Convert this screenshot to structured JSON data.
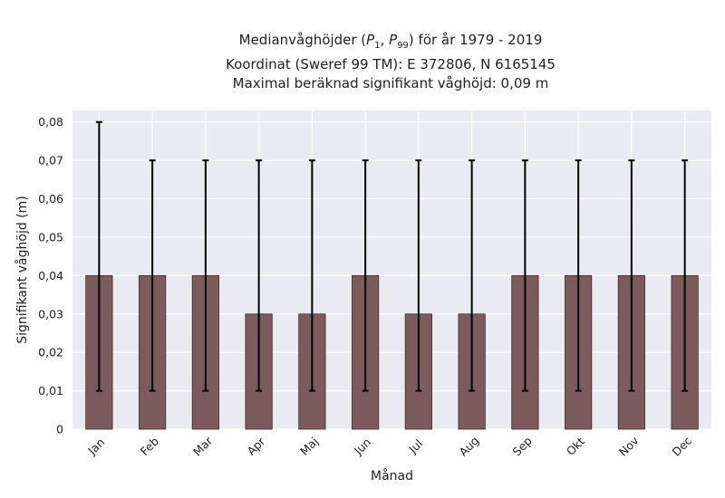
{
  "title_lines": [
    "Medianvåghöjder (P1, P99) för år 1979 - 2019",
    "Koordinat (Sweref 99 TM): E 372806, N 6165145",
    "Maximal beräknad signifikant våghöjd: 0,09 m"
  ],
  "colors": {
    "plot_background": "#eaeaf2",
    "grid": "#ffffff",
    "bar_fill": "#7b5b5b",
    "bar_edge": "#3f2a2a",
    "error_bar": "#000000"
  },
  "chart_data": {
    "type": "bar",
    "title": "Medianvåghöjder (P1, P99) för år 1979 - 2019",
    "xlabel": "Månad",
    "ylabel": "Signifikant våghöjd (m)",
    "categories": [
      "Jan",
      "Feb",
      "Mar",
      "Apr",
      "Maj",
      "Jun",
      "Jul",
      "Aug",
      "Sep",
      "Okt",
      "Nov",
      "Dec"
    ],
    "values": [
      0.04,
      0.04,
      0.04,
      0.03,
      0.03,
      0.04,
      0.03,
      0.03,
      0.04,
      0.04,
      0.04,
      0.04
    ],
    "error_low": [
      0.01,
      0.01,
      0.01,
      0.01,
      0.01,
      0.01,
      0.01,
      0.01,
      0.01,
      0.01,
      0.01,
      0.01
    ],
    "error_high": [
      0.08,
      0.07,
      0.07,
      0.07,
      0.07,
      0.07,
      0.07,
      0.07,
      0.07,
      0.07,
      0.07,
      0.07
    ],
    "ylim": [
      0,
      0.083
    ],
    "yticks": [
      0,
      0.01,
      0.02,
      0.03,
      0.04,
      0.05,
      0.06,
      0.07,
      0.08
    ],
    "ytick_labels": [
      "0",
      "0,01",
      "0,02",
      "0,03",
      "0,04",
      "0,05",
      "0,06",
      "0,07",
      "0,08"
    ],
    "grid": true,
    "legend": "none"
  }
}
